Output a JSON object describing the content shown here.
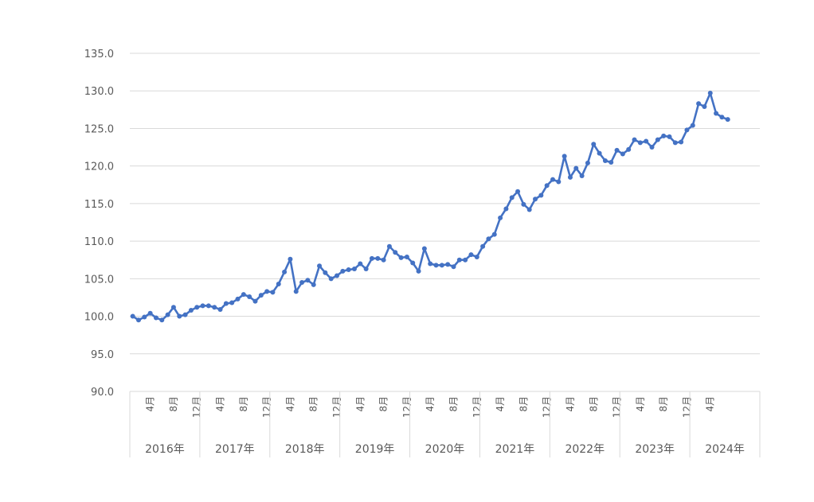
{
  "chart_data": {
    "type": "line",
    "title": "",
    "xlabel": "",
    "ylabel": "",
    "ylim": [
      90,
      135
    ],
    "y_ticks": [
      "90.0",
      "95.0",
      "100.0",
      "105.0",
      "110.0",
      "115.0",
      "120.0",
      "125.0",
      "130.0",
      "135.0"
    ],
    "grid": true,
    "legend": "none",
    "line_color": "#4472C4",
    "grid_color": "#d9d9d9",
    "years": [
      "2016年",
      "2017年",
      "2018年",
      "2019年",
      "2020年",
      "2021年",
      "2022年",
      "2023年",
      "2024年"
    ],
    "month_ticks": [
      "4月",
      "8月",
      "12月"
    ],
    "start": "2016-01",
    "series": [
      {
        "values": [
          100.0,
          99.5,
          99.9,
          100.4,
          99.8,
          99.5,
          100.2,
          101.2,
          100.0,
          100.2,
          100.8,
          101.2,
          101.4,
          101.4,
          101.2,
          100.9,
          101.7,
          101.8,
          102.3,
          102.9,
          102.6,
          102.0,
          102.8,
          103.3,
          103.2,
          104.3,
          105.9,
          107.6,
          103.3,
          104.5,
          104.8,
          104.2,
          106.7,
          105.8,
          105.0,
          105.4,
          106.0,
          106.2,
          106.3,
          107.0,
          106.3,
          107.7,
          107.7,
          107.5,
          109.3,
          108.5,
          107.8,
          107.9,
          107.1,
          106.0,
          109.0,
          107.0,
          106.8,
          106.8,
          106.9,
          106.6,
          107.5,
          107.5,
          108.2,
          107.9,
          109.3,
          110.3,
          110.9,
          113.1,
          114.3,
          115.8,
          116.6,
          114.9,
          114.2,
          115.6,
          116.1,
          117.4,
          118.2,
          117.9,
          121.3,
          118.5,
          119.7,
          118.7,
          120.4,
          122.9,
          121.7,
          120.7,
          120.5,
          122.1,
          121.6,
          122.2,
          123.5,
          123.1,
          123.3,
          122.5,
          123.5,
          124.0,
          123.9,
          123.1,
          123.2,
          124.8,
          125.4,
          128.3,
          127.9,
          129.7,
          127.0,
          126.5,
          126.2
        ]
      }
    ]
  }
}
